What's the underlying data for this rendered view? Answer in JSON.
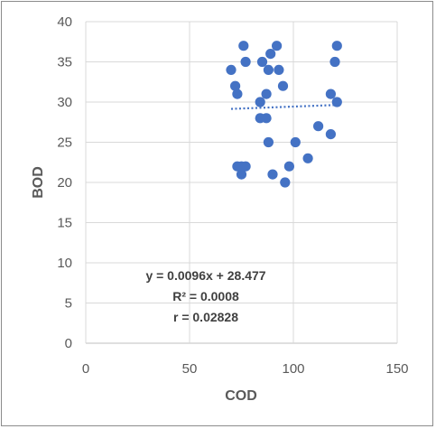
{
  "chart_data": {
    "type": "scatter",
    "xlabel": "COD",
    "ylabel": "BOD",
    "xlim": [
      0,
      150
    ],
    "ylim": [
      0,
      40
    ],
    "x_ticks": [
      "0",
      "50",
      "100",
      "150"
    ],
    "y_ticks": [
      "0",
      "5",
      "10",
      "15",
      "20",
      "25",
      "30",
      "35",
      "40"
    ],
    "grid": true,
    "marker_color": "#4472c4",
    "trendline": {
      "style": "dotted",
      "color": "#4472c4",
      "slope": 0.0096,
      "intercept": 28.477,
      "x_range": [
        70,
        121
      ]
    },
    "annotations": {
      "equation": "y = 0.0096x + 28.477",
      "r_squared": "R² = 0.0008",
      "r": "r = 0.02828"
    },
    "points": [
      {
        "x": 70,
        "y": 34
      },
      {
        "x": 72,
        "y": 32
      },
      {
        "x": 73,
        "y": 31
      },
      {
        "x": 73,
        "y": 22
      },
      {
        "x": 75,
        "y": 21
      },
      {
        "x": 75,
        "y": 22
      },
      {
        "x": 76,
        "y": 37
      },
      {
        "x": 77,
        "y": 35
      },
      {
        "x": 77,
        "y": 22
      },
      {
        "x": 84,
        "y": 30
      },
      {
        "x": 84,
        "y": 28
      },
      {
        "x": 85,
        "y": 35
      },
      {
        "x": 87,
        "y": 31
      },
      {
        "x": 87,
        "y": 28
      },
      {
        "x": 88,
        "y": 34
      },
      {
        "x": 88,
        "y": 25
      },
      {
        "x": 89,
        "y": 36
      },
      {
        "x": 90,
        "y": 21
      },
      {
        "x": 92,
        "y": 37
      },
      {
        "x": 93,
        "y": 34
      },
      {
        "x": 95,
        "y": 32
      },
      {
        "x": 96,
        "y": 20
      },
      {
        "x": 98,
        "y": 22
      },
      {
        "x": 101,
        "y": 25
      },
      {
        "x": 107,
        "y": 23
      },
      {
        "x": 112,
        "y": 27
      },
      {
        "x": 118,
        "y": 31
      },
      {
        "x": 118,
        "y": 26
      },
      {
        "x": 120,
        "y": 35
      },
      {
        "x": 121,
        "y": 37
      },
      {
        "x": 121,
        "y": 30
      }
    ]
  }
}
